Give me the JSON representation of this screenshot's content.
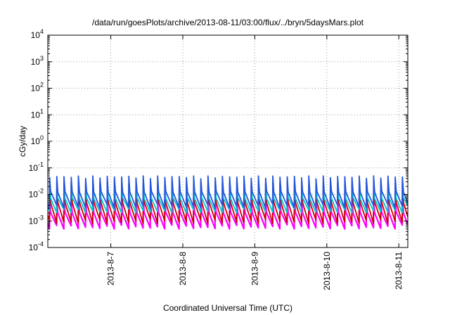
{
  "chart_data": {
    "type": "line",
    "title": "/data/run/goesPlots/archive/2013-08-11/03:00/flux/../bryn/5daysMars.plot",
    "xlabel": "Coordinated Universal Time (UTC)",
    "ylabel": "cGy/day",
    "yscale": "log",
    "grid": true,
    "ylim": [
      0.0001,
      10000
    ],
    "y_ticks": [
      {
        "base": "10",
        "exp": "-4"
      },
      {
        "base": "10",
        "exp": "-3"
      },
      {
        "base": "10",
        "exp": "-2"
      },
      {
        "base": "10",
        "exp": "-1"
      },
      {
        "base": "10",
        "exp": "0"
      },
      {
        "base": "10",
        "exp": "1"
      },
      {
        "base": "10",
        "exp": "2"
      },
      {
        "base": "10",
        "exp": "3"
      },
      {
        "base": "10",
        "exp": "4"
      }
    ],
    "xlim": [
      "2013-08-06 03:00",
      "2013-08-11 03:00"
    ],
    "x_ticks": [
      "2013-8-7",
      "2013-8-8",
      "2013-8-9",
      "2013-8-10",
      "2013-8-11"
    ],
    "series": [
      {
        "color": "#ff00ff",
        "low": 0.0005,
        "high": 0.008
      },
      {
        "color": "#cc0000",
        "low": 0.0008,
        "high": 0.03
      },
      {
        "color": "#00c8c8",
        "low": 0.002,
        "high": 0.025
      },
      {
        "color": "#2255dd",
        "low": 0.003,
        "high": 0.05
      }
    ]
  }
}
